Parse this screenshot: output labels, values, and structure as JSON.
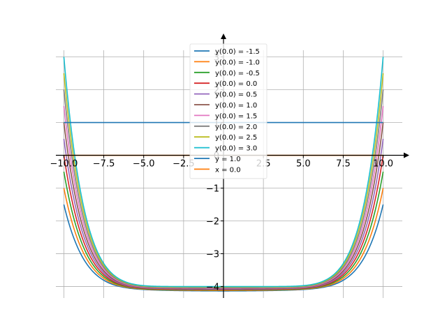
{
  "chart_data": {
    "type": "line",
    "title": "",
    "xlabel": "",
    "ylabel": "",
    "xlim": [
      -10.5,
      11.2
    ],
    "ylim": [
      -4.35,
      3.5
    ],
    "grid": true,
    "legend_placement": "top-center",
    "x_ticks": [
      -10.0,
      -7.5,
      -5.0,
      -2.5,
      0.0,
      2.5,
      5.0,
      7.5,
      10.0
    ],
    "x_tick_labels": [
      "−10.0",
      "−7.5",
      "−5.0",
      "−2.5",
      "0",
      "2.5",
      "5.0",
      "7.5",
      "10.0"
    ],
    "y_ticks": [
      -4,
      -3,
      -2,
      -1,
      0,
      1,
      2,
      3
    ],
    "y_tick_labels": [
      "−4",
      "−3",
      "−2",
      "−1",
      "0",
      "1",
      "2",
      "3"
    ],
    "curve_domain": [
      -10,
      10
    ],
    "series": [
      {
        "name": "y(0.0) = -1.5",
        "color": "#1f77b4",
        "start_value": -1.5
      },
      {
        "name": "y(0.0) = -1.0",
        "color": "#ff7f0e",
        "start_value": -1.0
      },
      {
        "name": "y(0.0) = -0.5",
        "color": "#2ca02c",
        "start_value": -0.5
      },
      {
        "name": "y(0.0) = 0.0",
        "color": "#d62728",
        "start_value": 0.0
      },
      {
        "name": "y(0.0) = 0.5",
        "color": "#9467bd",
        "start_value": 0.5
      },
      {
        "name": "y(0.0) = 1.0",
        "color": "#8c564b",
        "start_value": 1.0
      },
      {
        "name": "y(0.0) = 1.5",
        "color": "#e377c2",
        "start_value": 1.5
      },
      {
        "name": "y(0.0) = 2.0",
        "color": "#7f7f7f",
        "start_value": 2.0
      },
      {
        "name": "y(0.0) = 2.5",
        "color": "#bcbd22",
        "start_value": 2.5
      },
      {
        "name": "y(0.0) = 3.0",
        "color": "#17becf",
        "start_value": 3.0
      }
    ],
    "reference_lines": [
      {
        "name": "y = 1.0",
        "color": "#1f77b4",
        "orientation": "horizontal",
        "value": 1.0
      },
      {
        "name": "x = 0.0",
        "color": "#ff7f0e",
        "orientation": "vertical",
        "value": 0.0
      }
    ]
  }
}
